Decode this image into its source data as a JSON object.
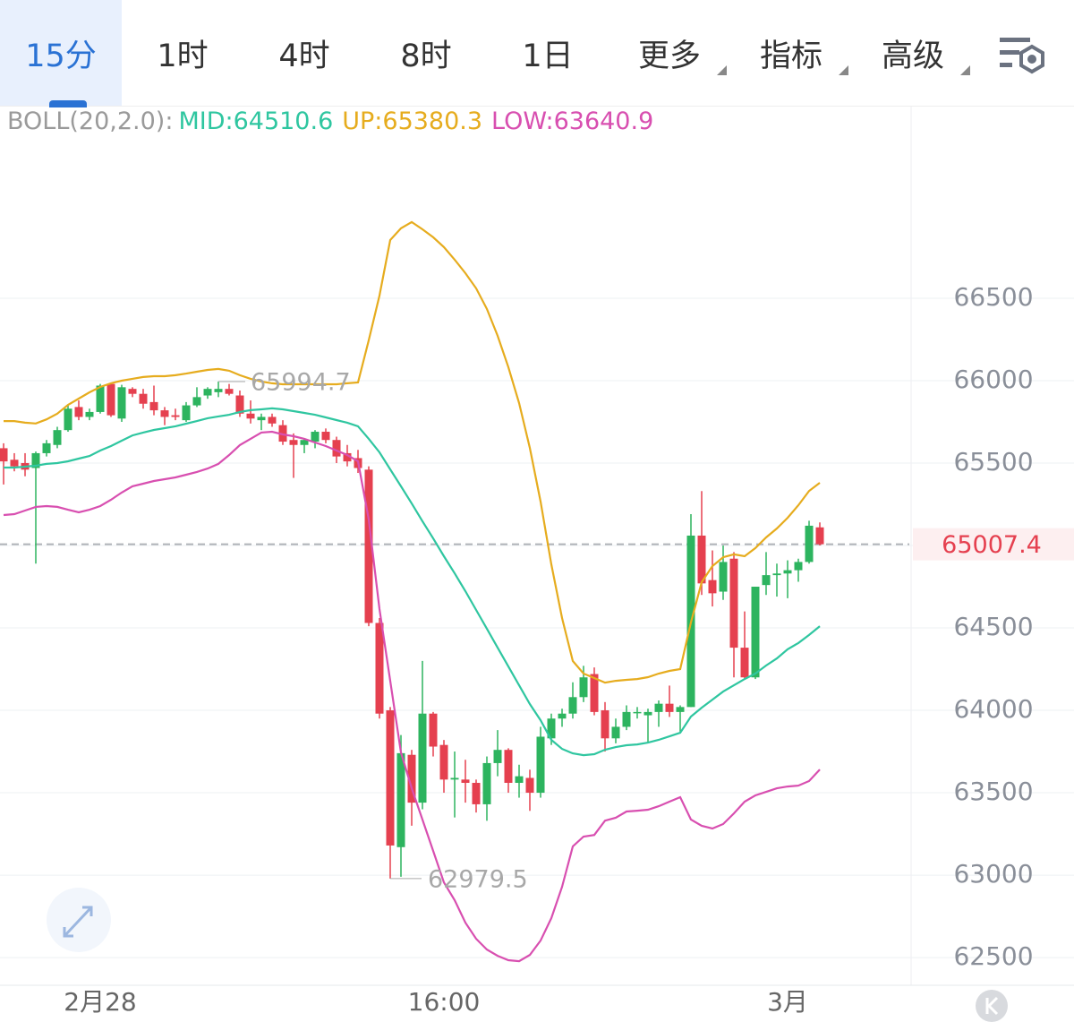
{
  "tabs": [
    {
      "label": "15分",
      "active": true
    },
    {
      "label": "1时"
    },
    {
      "label": "4时"
    },
    {
      "label": "8时"
    },
    {
      "label": "1日"
    },
    {
      "label": "更多",
      "dropdown": true
    },
    {
      "label": "指标",
      "dropdown": true
    },
    {
      "label": "高级",
      "dropdown": true
    }
  ],
  "chart_data": {
    "type": "candlestick",
    "indicator": "BOLL(20,2.0):",
    "categories": [
      null,
      null,
      null,
      null,
      null,
      null,
      null,
      null,
      null,
      "2月28",
      null,
      null,
      null,
      null,
      null,
      null,
      null,
      null,
      null,
      null,
      null,
      null,
      null,
      null,
      null,
      null,
      null,
      null,
      null,
      null,
      null,
      null,
      null,
      null,
      null,
      null,
      null,
      null,
      null,
      null,
      null,
      "16:00",
      null,
      null,
      null,
      null,
      null,
      null,
      null,
      null,
      null,
      null,
      null,
      null,
      null,
      null,
      null,
      null,
      null,
      null,
      null,
      null,
      null,
      null,
      null,
      null,
      null,
      null,
      null,
      null,
      null,
      null,
      null,
      "3月",
      null,
      null,
      null
    ],
    "open": [
      65590,
      65520,
      65500,
      65470,
      65560,
      65610,
      65700,
      65840,
      65780,
      65810,
      65980,
      65770,
      65950,
      65920,
      65870,
      65820,
      65790,
      65760,
      65850,
      65910,
      65930,
      65950,
      65910,
      65800,
      65760,
      65780,
      65730,
      65640,
      65610,
      65630,
      65690,
      65640,
      65560,
      65530,
      65460,
      64530,
      64000,
      63170,
      63730,
      63440,
      63980,
      63790,
      63580,
      63580,
      63560,
      63430,
      63680,
      63760,
      63560,
      63590,
      63500,
      63830,
      63950,
      63980,
      64080,
      64220,
      64000,
      63830,
      63900,
      63990,
      63970,
      63990,
      64040,
      63990,
      64020,
      65060,
      64790,
      64720,
      64920,
      64380,
      64200,
      64760,
      64820,
      64830,
      64850,
      64900,
      65110
    ],
    "high": [
      65620,
      65560,
      65560,
      65570,
      65640,
      65720,
      65850,
      65880,
      65830,
      65980,
      65985,
      65975,
      65960,
      65950,
      65970,
      65840,
      65830,
      65870,
      65960,
      65960,
      65994.7,
      65980,
      65940,
      65880,
      65800,
      65800,
      65760,
      65680,
      65650,
      65700,
      65710,
      65660,
      65610,
      65580,
      65480,
      64560,
      64020,
      63850,
      63760,
      64300,
      63990,
      63820,
      63750,
      63700,
      63580,
      63720,
      63880,
      63770,
      63670,
      63640,
      63900,
      63980,
      64010,
      64170,
      64270,
      64260,
      64050,
      63950,
      64030,
      64020,
      64010,
      64060,
      64150,
      64030,
      65190,
      65330,
      64970,
      65000,
      64960,
      64600,
      64750,
      64960,
      64890,
      64910,
      64920,
      65150,
      65140
    ],
    "low": [
      65370,
      65450,
      65420,
      64890,
      65540,
      65590,
      65690,
      65760,
      65760,
      65800,
      65780,
      65750,
      65900,
      65830,
      65790,
      65730,
      65760,
      65750,
      65840,
      65890,
      65900,
      65910,
      65780,
      65740,
      65700,
      65720,
      65610,
      65410,
      65560,
      65590,
      65620,
      65500,
      65480,
      65440,
      64510,
      63950,
      62979.5,
      62990,
      63300,
      63400,
      63720,
      63500,
      63350,
      63440,
      63380,
      63330,
      63600,
      63500,
      63470,
      63390,
      63470,
      63790,
      63900,
      63950,
      64050,
      63970,
      63750,
      63800,
      63880,
      63950,
      63800,
      63900,
      63960,
      63870,
      64020,
      64700,
      64630,
      64670,
      64200,
      64190,
      64190,
      64700,
      64690,
      64680,
      64780,
      64890,
      65000
    ],
    "close": [
      65510,
      65480,
      65460,
      65560,
      65620,
      65700,
      65830,
      65780,
      65810,
      65970,
      65790,
      65960,
      65920,
      65860,
      65820,
      65780,
      65780,
      65850,
      65900,
      65950,
      65950,
      65920,
      65800,
      65770,
      65780,
      65740,
      65630,
      65610,
      65640,
      65690,
      65640,
      65540,
      65510,
      65470,
      64530,
      63980,
      63180,
      63740,
      63440,
      63980,
      63780,
      63580,
      63590,
      63560,
      63430,
      63680,
      63760,
      63560,
      63600,
      63500,
      63840,
      63950,
      63980,
      64080,
      64200,
      63990,
      63830,
      63900,
      63990,
      63990,
      63990,
      64040,
      63990,
      64020,
      65060,
      64770,
      64710,
      64900,
      64380,
      64200,
      64750,
      64820,
      64830,
      64850,
      64900,
      65120,
      65007.4
    ],
    "up_color": "#2db45f",
    "down_color": "#e5404f",
    "series": [
      {
        "name": "MID:",
        "color": "#2fc6a0",
        "values": [
          65473,
          65473,
          65478,
          65484,
          65495,
          65500,
          65511,
          65527,
          65543,
          65576,
          65603,
          65636,
          65668,
          65685,
          65701,
          65712,
          65723,
          65739,
          65755,
          65772,
          65783,
          65793,
          65810,
          65821,
          65826,
          65832,
          65826,
          65815,
          65804,
          65793,
          65777,
          65761,
          65745,
          65723,
          65647,
          65565,
          65462,
          65359,
          65255,
          65147,
          65043,
          64935,
          64831,
          64723,
          64609,
          64495,
          64380,
          64266,
          64152,
          64038,
          63940,
          63821,
          63766,
          63739,
          63728,
          63734,
          63761,
          63777,
          63788,
          63793,
          63804,
          63821,
          63842,
          63864,
          63962,
          64016,
          64065,
          64114,
          64152,
          64190,
          64223,
          64272,
          64315,
          64370,
          64408,
          64457,
          64510.6
        ]
      },
      {
        "name": "UP:",
        "color": "#e6ac1e",
        "values": [
          65755,
          65755,
          65745,
          65740,
          65765,
          65800,
          65853,
          65891,
          65929,
          65962,
          65984,
          66000,
          66011,
          66022,
          66027,
          66027,
          66033,
          66043,
          66054,
          66065,
          66071,
          66060,
          66033,
          66011,
          65995,
          65984,
          65978,
          65978,
          65978,
          65978,
          65978,
          65978,
          65984,
          65989,
          66245,
          66516,
          66853,
          66924,
          66962,
          66918,
          66870,
          66810,
          66734,
          66652,
          66560,
          66435,
          66272,
          66082,
          65864,
          65592,
          65266,
          64886,
          64560,
          64299,
          64223,
          64196,
          64168,
          64179,
          64185,
          64190,
          64201,
          64223,
          64239,
          64250,
          64533,
          64777,
          64875,
          64929,
          64946,
          64935,
          64984,
          65049,
          65103,
          65168,
          65244,
          65331,
          65380.3
        ]
      },
      {
        "name": "LOW:",
        "color": "#d84fb0",
        "values": [
          65185,
          65190,
          65212,
          65234,
          65239,
          65234,
          65217,
          65201,
          65217,
          65239,
          65277,
          65321,
          65359,
          65375,
          65391,
          65402,
          65413,
          65429,
          65446,
          65467,
          65495,
          65549,
          65609,
          65647,
          65685,
          65690,
          65674,
          65663,
          65647,
          65625,
          65603,
          65576,
          65549,
          65511,
          65158,
          64614,
          64179,
          63744,
          63527,
          63337,
          63147,
          62956,
          62848,
          62712,
          62614,
          62549,
          62511,
          62484,
          62478,
          62516,
          62603,
          62739,
          62929,
          63174,
          63234,
          63244,
          63331,
          63348,
          63386,
          63391,
          63397,
          63418,
          63446,
          63473,
          63337,
          63299,
          63283,
          63310,
          63375,
          63446,
          63484,
          63505,
          63527,
          63538,
          63543,
          63571,
          63640.9
        ]
      }
    ],
    "ylim": [
      62332,
      67668
    ],
    "yticks": [
      62500,
      63000,
      63500,
      64000,
      64500,
      65000,
      65500,
      66000,
      66500
    ],
    "grid": true,
    "last_price_line": true,
    "mark_extremes": true
  }
}
